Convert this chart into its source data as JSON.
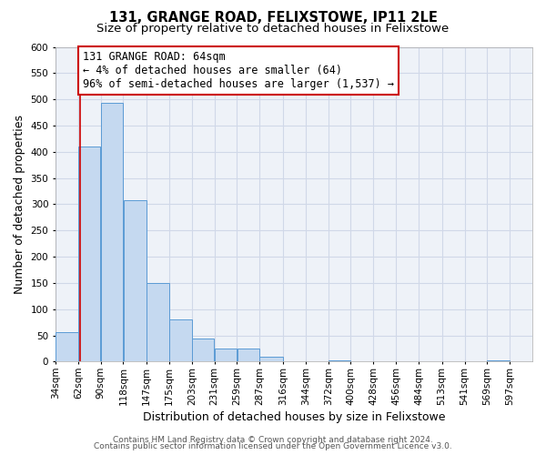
{
  "title": "131, GRANGE ROAD, FELIXSTOWE, IP11 2LE",
  "subtitle": "Size of property relative to detached houses in Felixstowe",
  "xlabel": "Distribution of detached houses by size in Felixstowe",
  "ylabel": "Number of detached properties",
  "bar_left_edges": [
    34,
    62,
    90,
    118,
    147,
    175,
    203,
    231,
    259,
    287,
    316,
    344,
    372,
    400,
    428,
    456,
    484,
    513,
    541,
    569
  ],
  "bar_widths": [
    28,
    28,
    28,
    29,
    28,
    28,
    28,
    28,
    28,
    29,
    28,
    28,
    28,
    28,
    28,
    28,
    29,
    28,
    28,
    28
  ],
  "bar_heights": [
    57,
    410,
    493,
    308,
    149,
    81,
    44,
    25,
    25,
    10,
    0,
    0,
    3,
    0,
    0,
    0,
    0,
    0,
    0,
    3
  ],
  "bar_color": "#c5d9f0",
  "bar_edge_color": "#5b9bd5",
  "vline_x": 64,
  "vline_color": "#cc0000",
  "annotation_line1": "131 GRANGE ROAD: 64sqm",
  "annotation_line2": "← 4% of detached houses are smaller (64)",
  "annotation_line3": "96% of semi-detached houses are larger (1,537) →",
  "annotation_box_edgecolor": "#cc0000",
  "annotation_box_facecolor": "#ffffff",
  "tick_labels": [
    "34sqm",
    "62sqm",
    "90sqm",
    "118sqm",
    "147sqm",
    "175sqm",
    "203sqm",
    "231sqm",
    "259sqm",
    "287sqm",
    "316sqm",
    "344sqm",
    "372sqm",
    "400sqm",
    "428sqm",
    "456sqm",
    "484sqm",
    "513sqm",
    "541sqm",
    "569sqm",
    "597sqm"
  ],
  "ylim": [
    0,
    600
  ],
  "yticks": [
    0,
    50,
    100,
    150,
    200,
    250,
    300,
    350,
    400,
    450,
    500,
    550,
    600
  ],
  "grid_color": "#d0d8e8",
  "plot_bg_color": "#eef2f8",
  "footer_line1": "Contains HM Land Registry data © Crown copyright and database right 2024.",
  "footer_line2": "Contains public sector information licensed under the Open Government Licence v3.0.",
  "title_fontsize": 10.5,
  "subtitle_fontsize": 9.5,
  "axis_label_fontsize": 9,
  "tick_fontsize": 7.5,
  "annotation_fontsize": 8.5,
  "footer_fontsize": 6.5
}
